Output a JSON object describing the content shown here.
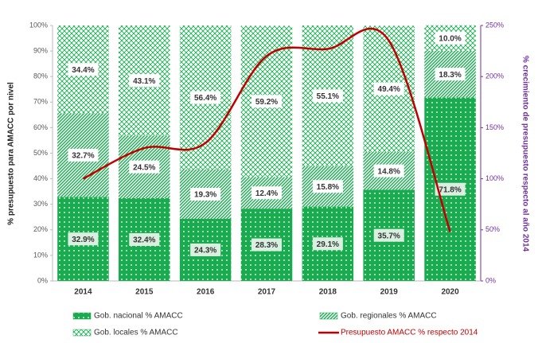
{
  "chart_data": {
    "type": "bar",
    "stacked": true,
    "categories": [
      "2014",
      "2015",
      "2016",
      "2017",
      "2018",
      "2019",
      "2020"
    ],
    "y_label": "% presupuesto para AMACC por nivel",
    "y2_label": "% crecimiento de presupuesto respecto al año 2014",
    "series": [
      {
        "name": "Gob. nacional % AMACC",
        "color": "#1aab50",
        "pattern": "dots",
        "values": [
          32.9,
          32.4,
          24.3,
          28.3,
          29.1,
          35.7,
          71.8
        ],
        "value_labels": [
          "32.9%",
          "32.4%",
          "24.3%",
          "28.3%",
          "29.1%",
          "35.7%",
          "71.8%"
        ]
      },
      {
        "name": "Gob. regionales % AMACC",
        "color": "#1aab50",
        "pattern": "diagonal",
        "values": [
          32.7,
          24.5,
          19.3,
          12.4,
          15.8,
          14.8,
          18.3
        ],
        "value_labels": [
          "32.7%",
          "24.5%",
          "19.3%",
          "12.4%",
          "15.8%",
          "14.8%",
          "18.3%"
        ]
      },
      {
        "name": "Gob. locales % AMACC",
        "color": "#1aab50",
        "pattern": "cross",
        "values": [
          34.4,
          43.1,
          56.4,
          59.2,
          55.1,
          49.4,
          10.0
        ],
        "value_labels": [
          "34.4%",
          "43.1%",
          "56.4%",
          "59.2%",
          "55.1%",
          "49.4%",
          "10.0%"
        ]
      },
      {
        "name": "Presupuesto AMACC % respecto 2014",
        "color": "#c00000",
        "type": "line",
        "axis": "y2",
        "values": [
          100,
          130,
          135,
          220,
          227,
          235,
          48
        ]
      }
    ],
    "ylim": [
      0,
      100
    ],
    "yticks": [
      {
        "value": 0,
        "label": "0%"
      },
      {
        "value": 10,
        "label": "10%"
      },
      {
        "value": 20,
        "label": "20%"
      },
      {
        "value": 30,
        "label": "30%"
      },
      {
        "value": 40,
        "label": "40%"
      },
      {
        "value": 50,
        "label": "50%"
      },
      {
        "value": 60,
        "label": "60%"
      },
      {
        "value": 70,
        "label": "70%"
      },
      {
        "value": 80,
        "label": "80%"
      },
      {
        "value": 90,
        "label": "90%"
      },
      {
        "value": 100,
        "label": "100%"
      }
    ],
    "y2lim": [
      0,
      250
    ],
    "y2ticks": [
      {
        "value": 0,
        "label": "0%"
      },
      {
        "value": 50,
        "label": "50%"
      },
      {
        "value": 100,
        "label": "100%"
      },
      {
        "value": 150,
        "label": "150%"
      },
      {
        "value": 200,
        "label": "200%"
      },
      {
        "value": 250,
        "label": "250%"
      }
    ]
  }
}
